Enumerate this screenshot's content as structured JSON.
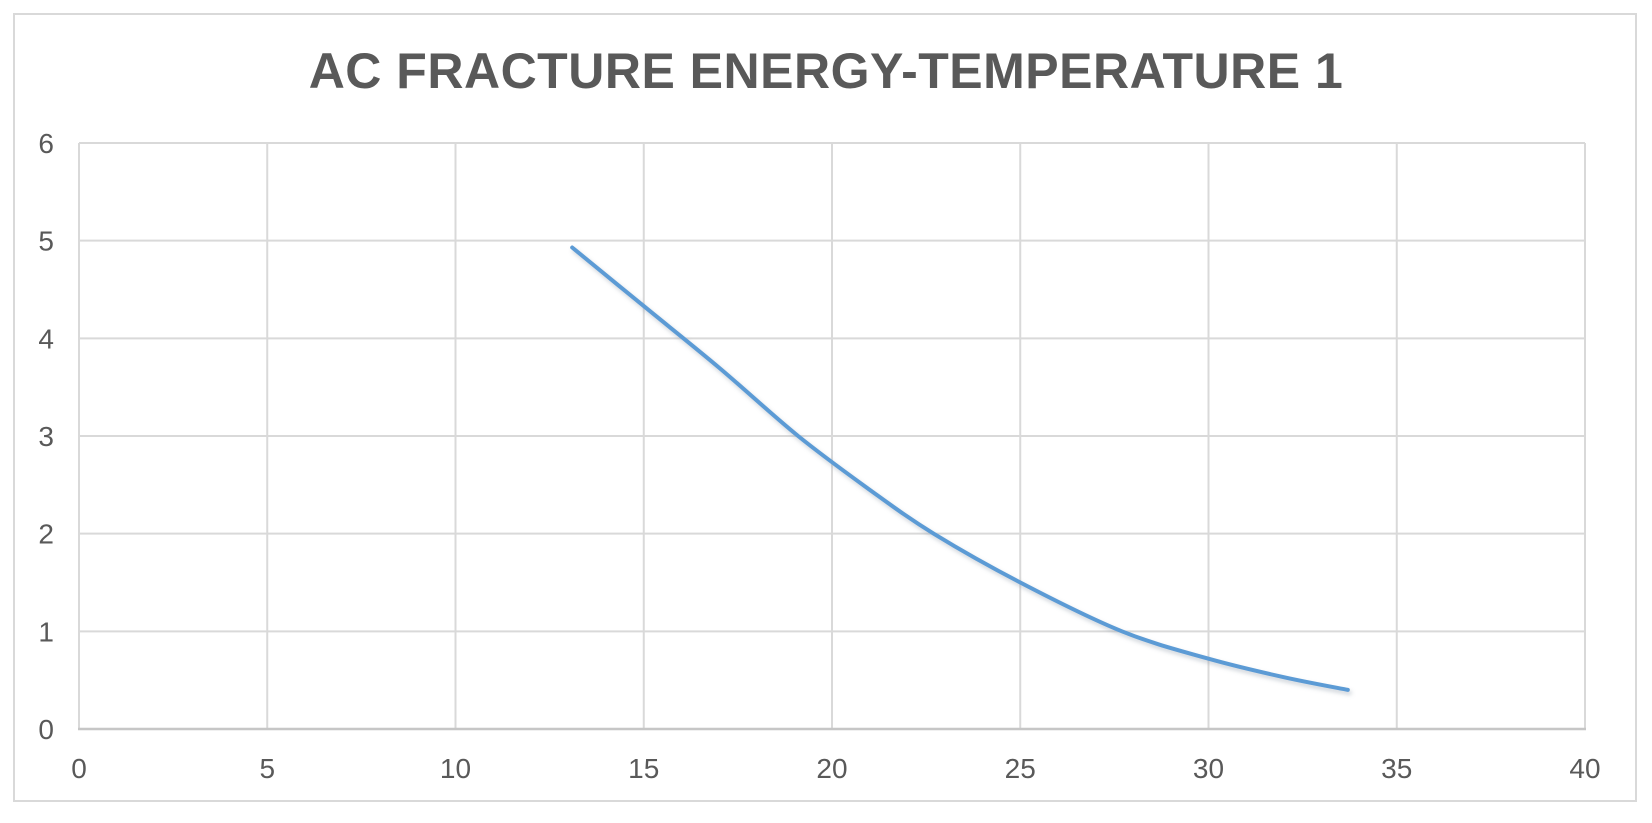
{
  "chart_data": {
    "type": "line",
    "title": "AC FRACTURE ENERGY-TEMPERATURE 1",
    "xlabel": "",
    "ylabel": "",
    "xlim": [
      0,
      40
    ],
    "ylim": [
      0,
      6
    ],
    "x_ticks": [
      0,
      5,
      10,
      15,
      20,
      25,
      30,
      35,
      40
    ],
    "y_ticks": [
      0,
      1,
      2,
      3,
      4,
      5,
      6
    ],
    "grid": true,
    "legend": "none",
    "smooth": true,
    "markers": false,
    "colors": {
      "line": "#5B9BD5",
      "gridline": "#D9D9D9",
      "axis_line": "#C6C6C6",
      "tick_label": "#595959",
      "title": "#595959",
      "chart_border": "#D9D9D9",
      "background": "#FFFFFF"
    },
    "series": [
      {
        "name": "AC FRACTURE ENERGY-TEMPERATURE 1",
        "x": [
          13.1,
          15.0,
          17.0,
          19.1,
          21.0,
          22.7,
          25.0,
          27.7,
          30.0,
          32.0,
          33.7
        ],
        "y": [
          4.93,
          4.33,
          3.7,
          3.0,
          2.45,
          2.0,
          1.5,
          1.0,
          0.72,
          0.53,
          0.4
        ]
      }
    ]
  }
}
